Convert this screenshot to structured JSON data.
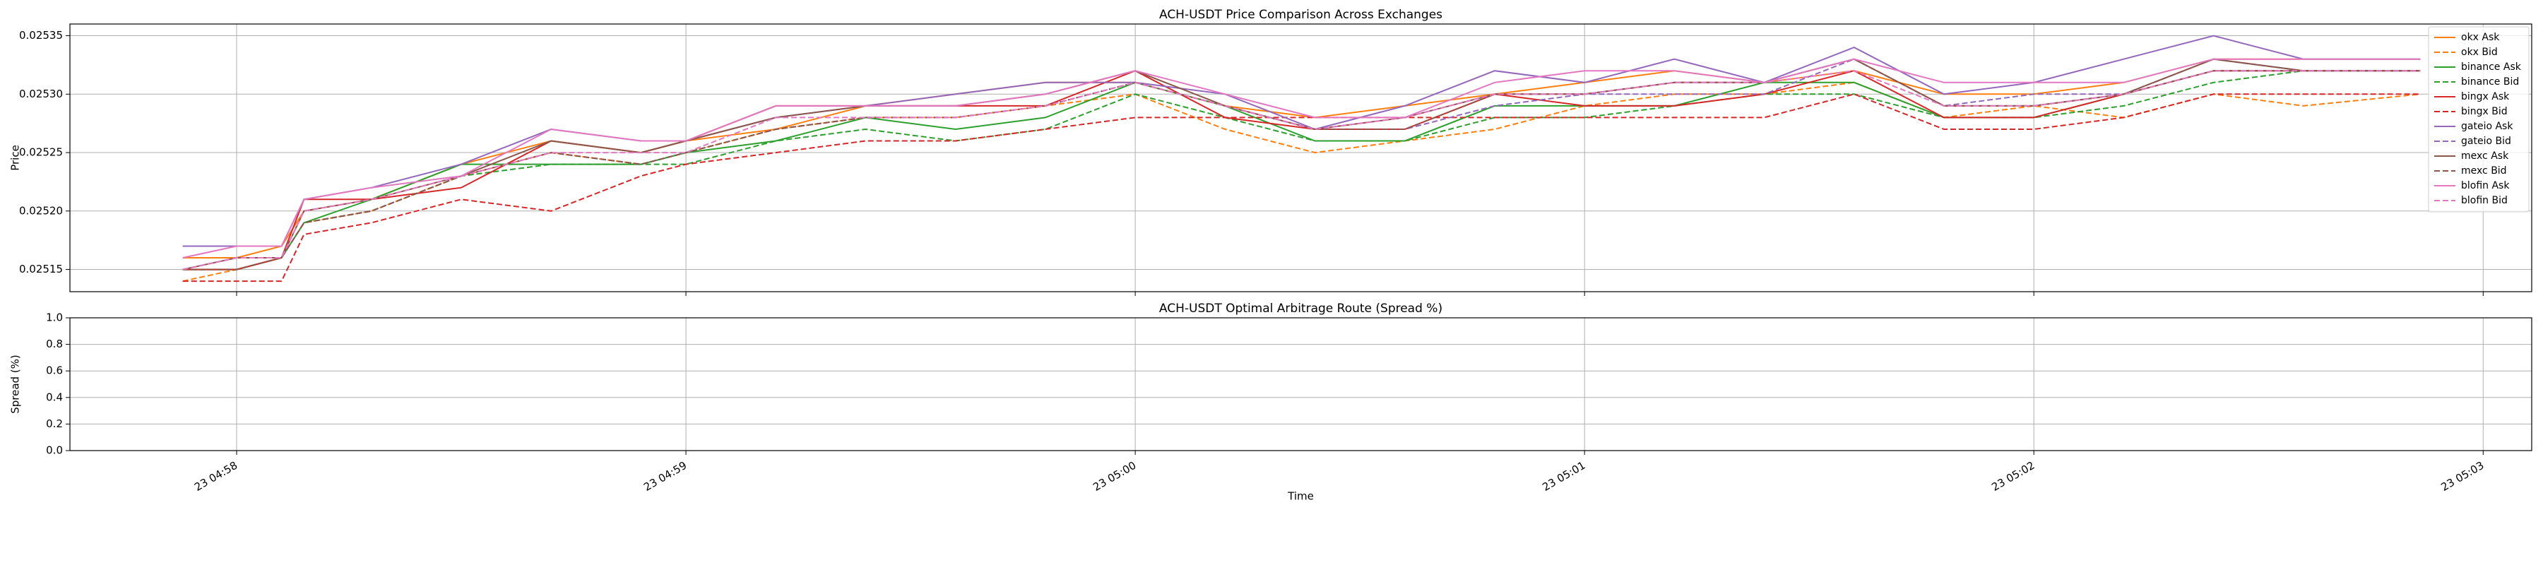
{
  "chart_data": [
    {
      "type": "line",
      "title": "ACH-USDT Price Comparison Across Exchanges",
      "y_label": "Price",
      "x": [
        -0.12,
        0.0,
        0.1,
        0.15,
        0.3,
        0.5,
        0.7,
        0.9,
        1.0,
        1.2,
        1.4,
        1.6,
        1.8,
        2.0,
        2.2,
        2.4,
        2.6,
        2.8,
        3.0,
        3.2,
        3.4,
        3.6,
        3.8,
        4.0,
        4.2,
        4.4,
        4.6,
        4.86
      ],
      "xlim": [
        -0.371,
        5.108
      ],
      "xticks": [
        0,
        1,
        2,
        3,
        4,
        5
      ],
      "ylim": [
        0.025131,
        0.02536
      ],
      "yticks": [
        0.02515,
        {
          "value": 0.0252,
          "label": "0.02520"
        },
        0.02525,
        {
          "value": 0.0253,
          "label": "0.02530"
        },
        0.02535
      ],
      "grid": true,
      "legend": "upper right",
      "series": [
        {
          "name": "okx Ask",
          "color": "#ff7f0e",
          "linestyle": "solid",
          "values": [
            0.02516,
            0.02516,
            0.02517,
            0.0252,
            0.02521,
            0.02524,
            0.02526,
            0.02525,
            0.02526,
            0.02527,
            0.02529,
            0.0253,
            0.02531,
            0.02531,
            0.02529,
            0.02528,
            0.02529,
            0.0253,
            0.02531,
            0.02532,
            0.02531,
            0.02532,
            0.0253,
            0.0253,
            0.02531,
            0.02533,
            0.02533,
            0.02533
          ]
        },
        {
          "name": "okx Bid",
          "color": "#ff7f0e",
          "linestyle": "dashed",
          "values": [
            0.02514,
            0.02515,
            0.02516,
            0.02519,
            0.0252,
            0.02523,
            0.02525,
            0.02524,
            0.02525,
            0.02527,
            0.02528,
            0.02528,
            0.02529,
            0.0253,
            0.02527,
            0.02525,
            0.02526,
            0.02527,
            0.02529,
            0.0253,
            0.0253,
            0.02531,
            0.02528,
            0.02529,
            0.02528,
            0.0253,
            0.02529,
            0.0253
          ]
        },
        {
          "name": "binance Ask",
          "color": "#2ca02c",
          "linestyle": "solid",
          "values": [
            0.02515,
            0.02515,
            0.02516,
            0.02519,
            0.02521,
            0.02524,
            0.02524,
            0.02524,
            0.02525,
            0.02526,
            0.02528,
            0.02527,
            0.02528,
            0.02531,
            0.02529,
            0.02526,
            0.02526,
            0.02529,
            0.02529,
            0.02529,
            0.02531,
            0.02531,
            0.02528,
            0.02528,
            0.0253,
            0.02532,
            0.02532,
            0.02532
          ]
        },
        {
          "name": "binance Bid",
          "color": "#2ca02c",
          "linestyle": "dashed",
          "values": [
            0.02515,
            0.02515,
            0.02516,
            0.02519,
            0.0252,
            0.02523,
            0.02524,
            0.02524,
            0.02524,
            0.02526,
            0.02527,
            0.02526,
            0.02527,
            0.0253,
            0.02528,
            0.02526,
            0.02526,
            0.02528,
            0.02528,
            0.02529,
            0.0253,
            0.0253,
            0.02528,
            0.02528,
            0.02529,
            0.02531,
            0.02532,
            0.02532
          ]
        },
        {
          "name": "bingx Ask",
          "color": "#d62728",
          "linestyle": "solid",
          "values": [
            0.02515,
            0.02515,
            0.02516,
            0.02521,
            0.02521,
            0.02522,
            0.02526,
            0.02525,
            0.02526,
            0.02529,
            0.02529,
            0.02529,
            0.02529,
            0.02532,
            0.02528,
            0.02527,
            0.02527,
            0.0253,
            0.02529,
            0.02529,
            0.0253,
            0.02532,
            0.02528,
            0.02528,
            0.0253,
            0.02532,
            0.02532,
            0.02532
          ]
        },
        {
          "name": "bingx Bid",
          "color": "#d62728",
          "linestyle": "dashed",
          "values": [
            0.02514,
            0.02514,
            0.02514,
            0.02518,
            0.02519,
            0.02521,
            0.0252,
            0.02523,
            0.02524,
            0.02525,
            0.02526,
            0.02526,
            0.02527,
            0.02528,
            0.02528,
            0.02528,
            0.02528,
            0.02528,
            0.02528,
            0.02528,
            0.02528,
            0.0253,
            0.02527,
            0.02527,
            0.02528,
            0.0253,
            0.0253,
            0.0253
          ]
        },
        {
          "name": "gateio Ask",
          "color": "#9467bd",
          "linestyle": "solid",
          "values": [
            0.02517,
            0.02517,
            0.02517,
            0.02521,
            0.02522,
            0.02524,
            0.02527,
            0.02526,
            0.02526,
            0.02528,
            0.02529,
            0.0253,
            0.02531,
            0.02531,
            0.0253,
            0.02527,
            0.02529,
            0.02532,
            0.02531,
            0.02533,
            0.02531,
            0.02534,
            0.0253,
            0.02531,
            0.02533,
            0.02535,
            0.02533,
            0.02533
          ]
        },
        {
          "name": "gateio Bid",
          "color": "#9467bd",
          "linestyle": "dashed",
          "values": [
            0.02515,
            0.02516,
            0.02516,
            0.02519,
            0.0252,
            0.02523,
            0.02525,
            0.02524,
            0.02525,
            0.02527,
            0.02528,
            0.02528,
            0.02529,
            0.02531,
            0.02529,
            0.02527,
            0.02527,
            0.02529,
            0.0253,
            0.0253,
            0.0253,
            0.02533,
            0.02529,
            0.0253,
            0.0253,
            0.02533,
            0.02532,
            0.02532
          ]
        },
        {
          "name": "mexc Ask",
          "color": "#8c564b",
          "linestyle": "solid",
          "values": [
            0.02515,
            0.02516,
            0.02516,
            0.0252,
            0.02521,
            0.02523,
            0.02526,
            0.02525,
            0.02526,
            0.02528,
            0.02529,
            0.02529,
            0.0253,
            0.02532,
            0.02529,
            0.02527,
            0.02528,
            0.0253,
            0.0253,
            0.02531,
            0.02531,
            0.02533,
            0.02529,
            0.02529,
            0.0253,
            0.02533,
            0.02532,
            0.02532
          ]
        },
        {
          "name": "mexc Bid",
          "color": "#8c564b",
          "linestyle": "dashed",
          "values": [
            0.02515,
            0.02515,
            0.02516,
            0.02519,
            0.0252,
            0.02523,
            0.02525,
            0.02524,
            0.02525,
            0.02527,
            0.02528,
            0.02528,
            0.02529,
            0.02531,
            0.02529,
            0.02527,
            0.02527,
            0.0253,
            0.0253,
            0.02531,
            0.02531,
            0.02533,
            0.02529,
            0.02529,
            0.0253,
            0.02532,
            0.02532,
            0.02532
          ]
        },
        {
          "name": "blofin Ask",
          "color": "#e377c2",
          "linestyle": "solid",
          "values": [
            0.02516,
            0.02517,
            0.02517,
            0.02521,
            0.02522,
            0.02523,
            0.02527,
            0.02526,
            0.02526,
            0.02529,
            0.02529,
            0.02529,
            0.0253,
            0.02532,
            0.0253,
            0.02528,
            0.02528,
            0.02531,
            0.02532,
            0.02532,
            0.02531,
            0.02533,
            0.02531,
            0.02531,
            0.02531,
            0.02533,
            0.02533,
            0.02533
          ]
        },
        {
          "name": "blofin Bid",
          "color": "#e377c2",
          "linestyle": "dashed",
          "values": [
            0.02515,
            0.02516,
            0.02516,
            0.0252,
            0.02521,
            0.02523,
            0.02525,
            0.02525,
            0.02525,
            0.02528,
            0.02528,
            0.02528,
            0.02529,
            0.02531,
            0.02529,
            0.02527,
            0.02528,
            0.0253,
            0.0253,
            0.02531,
            0.02531,
            0.02532,
            0.02529,
            0.02529,
            0.0253,
            0.02532,
            0.02532,
            0.02532
          ]
        }
      ]
    },
    {
      "type": "line",
      "title": "ACH-USDT Optimal Arbitrage Route (Spread %)",
      "y_label": "Spread (%)",
      "x_label": "Time",
      "xlim": [
        -0.371,
        5.108
      ],
      "xticks": [
        {
          "value": 0,
          "label": "23 04:58"
        },
        {
          "value": 1,
          "label": "23 04:59"
        },
        {
          "value": 2,
          "label": "23 05:00"
        },
        {
          "value": 3,
          "label": "23 05:01"
        },
        {
          "value": 4,
          "label": "23 05:02"
        },
        {
          "value": 5,
          "label": "23 05:03"
        }
      ],
      "ylim": [
        0,
        1
      ],
      "yticks": [
        {
          "value": 0,
          "label": "0.0"
        },
        0.2,
        0.4,
        0.6,
        0.8,
        {
          "value": 1,
          "label": "1.0"
        }
      ],
      "grid": true,
      "series": []
    }
  ]
}
